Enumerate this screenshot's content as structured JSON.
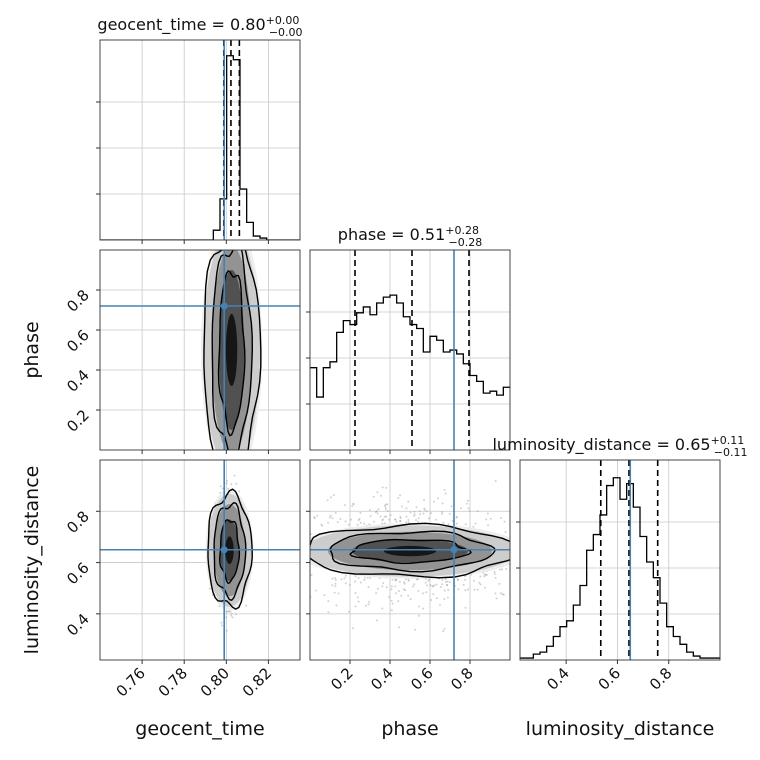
{
  "chart_data": {
    "type": "corner",
    "parameters": [
      {
        "name": "geocent_time",
        "xlabel": "geocent_time",
        "title": {
          "label": "geocent_time = 0.80",
          "upper": "+0.00",
          "lower": "−0.00"
        },
        "range": [
          0.74,
          0.835
        ],
        "ticks": [
          0.76,
          0.78,
          0.8,
          0.82
        ],
        "tick_labels": [
          "0.76",
          "0.78",
          "0.80",
          "0.82"
        ],
        "truth": 0.799,
        "quantiles": [
          0.7988,
          0.8022,
          0.8062
        ],
        "hist": [
          0,
          0,
          0,
          0,
          0,
          0,
          0,
          0,
          0,
          0,
          0,
          0,
          0,
          0,
          0,
          0,
          0,
          0.05,
          0.21,
          0.94,
          0.92,
          0.26,
          0.09,
          0.02,
          0.01,
          0,
          0,
          0,
          0,
          0
        ]
      },
      {
        "name": "phase",
        "xlabel": "phase",
        "ylabel": "phase",
        "title": {
          "label": "phase = 0.51",
          "upper": "+0.28",
          "lower": "−0.28"
        },
        "range": [
          0.0,
          1.0
        ],
        "ticks": [
          0.2,
          0.4,
          0.6,
          0.8
        ],
        "tick_labels": [
          "0.2",
          "0.4",
          "0.6",
          "0.8"
        ],
        "truth": 0.72,
        "quantiles": [
          0.225,
          0.51,
          0.795
        ],
        "hist": [
          0.42,
          0.27,
          0.42,
          0.45,
          0.6,
          0.66,
          0.64,
          0.7,
          0.73,
          0.69,
          0.75,
          0.78,
          0.79,
          0.75,
          0.68,
          0.64,
          0.62,
          0.5,
          0.58,
          0.56,
          0.5,
          0.51,
          0.49,
          0.44,
          0.38,
          0.35,
          0.29,
          0.3,
          0.28,
          0.32
        ]
      },
      {
        "name": "luminosity_distance",
        "xlabel": "luminosity_distance",
        "ylabel": "luminosity_distance",
        "title": {
          "label": "luminosity_distance = 0.65",
          "upper": "+0.11",
          "lower": "−0.11"
        },
        "range": [
          0.22,
          1.0
        ],
        "ticks": [
          0.4,
          0.6,
          0.8
        ],
        "tick_labels": [
          "0.4",
          "0.6",
          "0.8"
        ],
        "truth": 0.65,
        "quantiles": [
          0.535,
          0.645,
          0.757
        ],
        "hist": [
          0.01,
          0.01,
          0.03,
          0.04,
          0.07,
          0.12,
          0.17,
          0.2,
          0.28,
          0.38,
          0.56,
          0.64,
          0.74,
          0.89,
          0.93,
          0.82,
          0.9,
          0.78,
          0.63,
          0.5,
          0.42,
          0.29,
          0.17,
          0.12,
          0.08,
          0.04,
          0.02,
          0.01,
          0.01,
          0.01
        ]
      }
    ],
    "pairs": [
      {
        "x": "geocent_time",
        "y": "phase",
        "center": [
          0.8025,
          0.5
        ],
        "spread": [
          0.0028,
          0.29
        ],
        "levels": [
          [
            0.006,
            0.4
          ],
          [
            0.0095,
            0.52
          ],
          [
            0.0135,
            0.6
          ]
        ]
      },
      {
        "x": "geocent_time",
        "y": "luminosity_distance",
        "center": [
          0.8015,
          0.648
        ],
        "spread": [
          0.0028,
          0.1
        ],
        "levels": [
          [
            0.0045,
            0.12
          ],
          [
            0.0075,
            0.18
          ],
          [
            0.0105,
            0.22
          ]
        ]
      },
      {
        "x": "phase",
        "y": "luminosity_distance",
        "center": [
          0.5,
          0.645
        ],
        "spread": [
          0.27,
          0.1
        ],
        "levels": [
          [
            0.29,
            0.045
          ],
          [
            0.41,
            0.075
          ],
          [
            0.53,
            0.1
          ]
        ]
      }
    ],
    "grid": true,
    "colors": {
      "truth": "#4682b4",
      "hist": "#000000",
      "quantile": "#000000",
      "grid": "#c8c8c8",
      "points": "#9a9a9a"
    }
  }
}
